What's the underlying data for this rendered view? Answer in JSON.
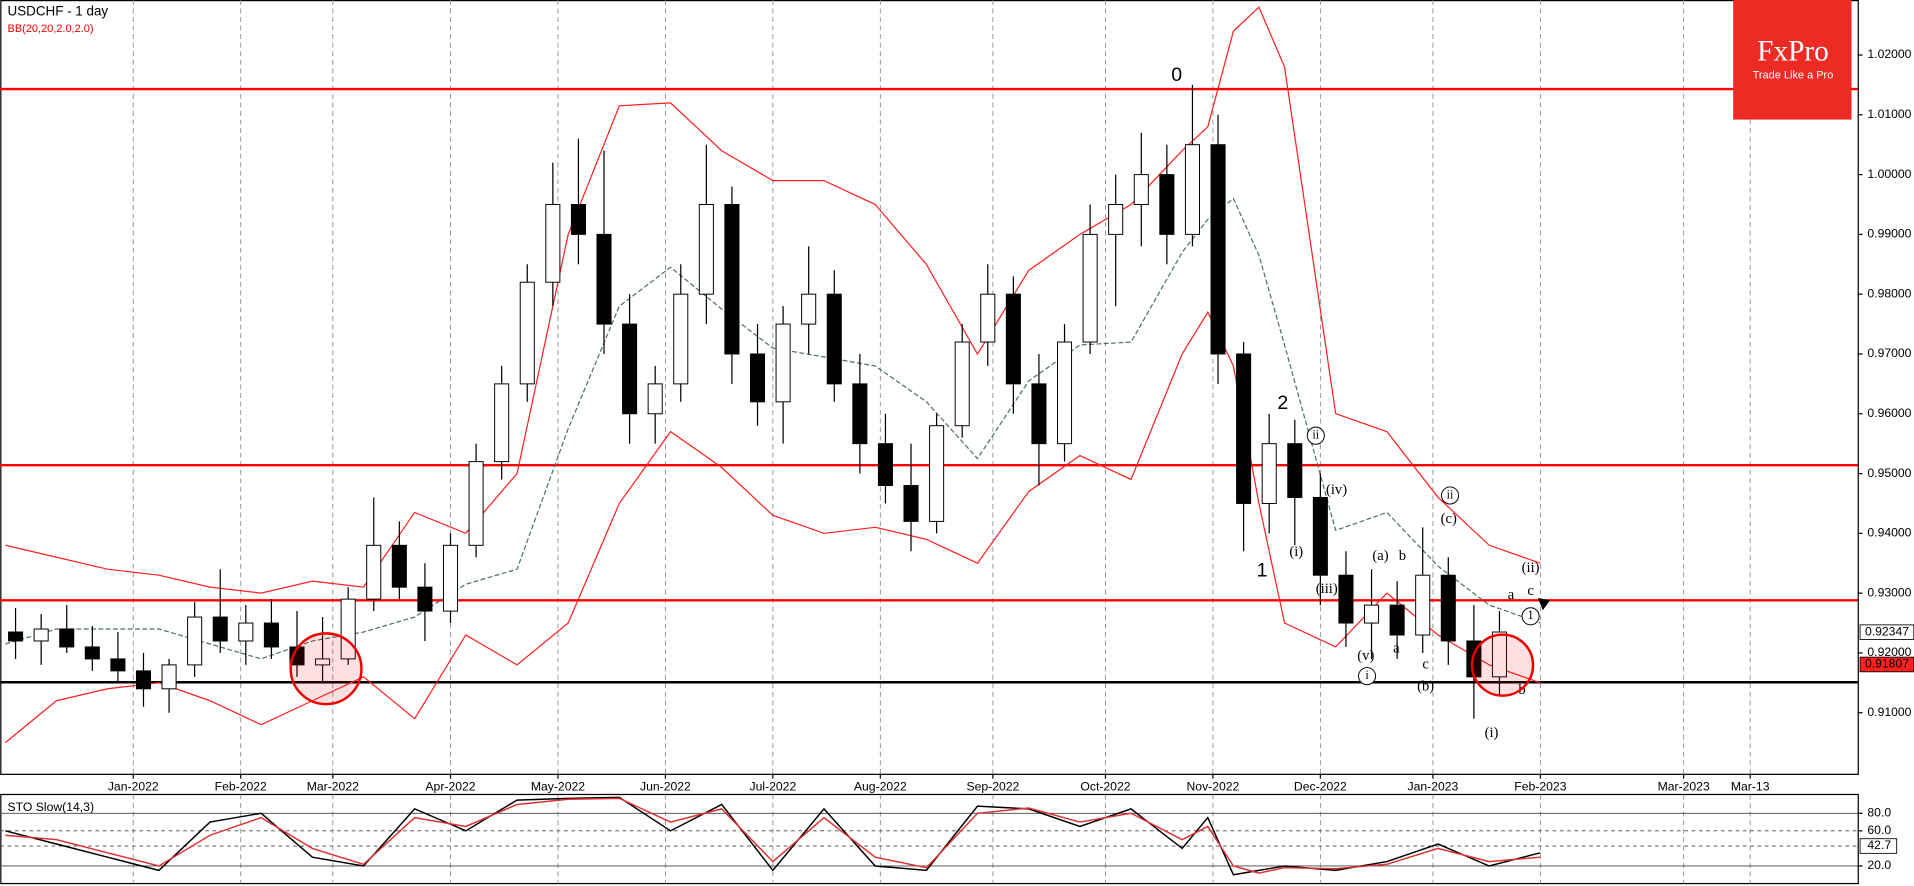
{
  "logo": {
    "name": "FxPro",
    "tagline": "Trade Like a Pro"
  },
  "chart_data": [
    {
      "type": "candlestick",
      "title": "USDCHF - 1 day",
      "subtitle": "BB(20,20,2.0,2.0)",
      "x": [
        -23,
        -18,
        -13,
        -8,
        -3,
        2,
        7,
        12,
        17,
        22,
        27,
        32,
        37,
        42,
        47,
        52,
        57,
        62,
        67,
        72,
        77,
        82,
        87,
        92,
        97,
        102,
        107,
        112,
        117,
        122,
        127,
        132,
        137,
        142,
        147,
        152,
        157,
        162,
        167,
        172,
        177,
        182,
        187,
        192,
        197,
        202,
        207,
        212,
        217,
        222,
        227,
        232,
        237,
        242,
        247,
        252,
        257,
        262,
        267
      ],
      "open": [
        0.9235,
        0.922,
        0.924,
        0.921,
        0.919,
        0.917,
        0.914,
        0.918,
        0.926,
        0.922,
        0.925,
        0.921,
        0.918,
        0.919,
        0.929,
        0.938,
        0.931,
        0.927,
        0.938,
        0.952,
        0.965,
        0.982,
        0.995,
        0.99,
        0.975,
        0.96,
        0.965,
        0.98,
        0.995,
        0.97,
        0.962,
        0.975,
        0.98,
        0.965,
        0.955,
        0.948,
        0.942,
        0.958,
        0.972,
        0.98,
        0.965,
        0.955,
        0.972,
        0.99,
        0.995,
        1.0,
        0.99,
        1.005,
        0.97,
        0.945,
        0.955,
        0.946,
        0.933,
        0.925,
        0.928,
        0.923,
        0.933,
        0.922,
        0.916
      ],
      "high": [
        0.9275,
        0.9265,
        0.928,
        0.9245,
        0.9235,
        0.92,
        0.919,
        0.9285,
        0.934,
        0.928,
        0.929,
        0.927,
        0.926,
        0.931,
        0.946,
        0.942,
        0.935,
        0.94,
        0.955,
        0.968,
        0.985,
        1.002,
        1.006,
        1.004,
        0.98,
        0.968,
        0.985,
        1.005,
        0.998,
        0.975,
        0.978,
        0.988,
        0.984,
        0.97,
        0.96,
        0.955,
        0.96,
        0.975,
        0.985,
        0.983,
        0.97,
        0.975,
        0.995,
        1.0,
        1.007,
        1.005,
        1.015,
        1.01,
        0.972,
        0.96,
        0.959,
        0.95,
        0.937,
        0.934,
        0.932,
        0.941,
        0.936,
        0.928,
        0.927
      ],
      "low": [
        0.919,
        0.918,
        0.92,
        0.917,
        0.915,
        0.911,
        0.91,
        0.916,
        0.92,
        0.918,
        0.919,
        0.916,
        0.915,
        0.918,
        0.927,
        0.929,
        0.922,
        0.925,
        0.936,
        0.949,
        0.962,
        0.978,
        0.985,
        0.97,
        0.955,
        0.955,
        0.962,
        0.975,
        0.965,
        0.958,
        0.955,
        0.97,
        0.962,
        0.95,
        0.945,
        0.937,
        0.94,
        0.956,
        0.968,
        0.96,
        0.948,
        0.952,
        0.97,
        0.978,
        0.988,
        0.985,
        0.988,
        0.965,
        0.937,
        0.94,
        0.938,
        0.928,
        0.921,
        0.919,
        0.919,
        0.92,
        0.918,
        0.909,
        0.913
      ],
      "close": [
        0.922,
        0.924,
        0.921,
        0.919,
        0.917,
        0.914,
        0.918,
        0.926,
        0.922,
        0.925,
        0.921,
        0.918,
        0.919,
        0.929,
        0.938,
        0.931,
        0.927,
        0.938,
        0.952,
        0.965,
        0.982,
        0.995,
        0.99,
        0.975,
        0.96,
        0.965,
        0.98,
        0.995,
        0.97,
        0.962,
        0.975,
        0.98,
        0.965,
        0.955,
        0.948,
        0.942,
        0.958,
        0.972,
        0.98,
        0.965,
        0.955,
        0.972,
        0.99,
        0.995,
        1.0,
        0.99,
        1.005,
        0.97,
        0.945,
        0.955,
        0.946,
        0.933,
        0.925,
        0.928,
        0.923,
        0.933,
        0.922,
        0.916,
        0.9235
      ],
      "up_color": "#ffffff",
      "down_color": "#000000",
      "bands": {
        "x": [
          -25,
          -15,
          -5,
          5,
          15,
          25,
          35,
          45,
          55,
          65,
          75,
          85,
          95,
          105,
          115,
          125,
          135,
          145,
          155,
          165,
          175,
          185,
          195,
          205,
          210,
          215,
          220,
          225,
          235,
          245,
          255,
          265,
          275
        ],
        "upper": [
          0.938,
          0.936,
          0.934,
          0.933,
          0.931,
          0.93,
          0.932,
          0.931,
          0.9435,
          0.94,
          0.95,
          0.99,
          1.0115,
          1.012,
          1.004,
          0.999,
          0.999,
          0.995,
          0.985,
          0.97,
          0.984,
          0.99,
          0.995,
          1.004,
          1.008,
          1.024,
          1.028,
          1.018,
          0.96,
          0.957,
          0.946,
          0.938,
          0.935
        ],
        "middle": [
          0.9215,
          0.924,
          0.924,
          0.924,
          0.9215,
          0.919,
          0.922,
          0.9235,
          0.926,
          0.9315,
          0.934,
          0.9575,
          0.978,
          0.9845,
          0.9775,
          0.971,
          0.9695,
          0.968,
          0.962,
          0.9525,
          0.9655,
          0.9715,
          0.972,
          0.987,
          0.9925,
          0.996,
          0.9865,
          0.9715,
          0.9405,
          0.9435,
          0.9345,
          0.928,
          0.925
        ],
        "lower": [
          0.905,
          0.912,
          0.914,
          0.915,
          0.912,
          0.908,
          0.912,
          0.916,
          0.909,
          0.923,
          0.918,
          0.925,
          0.945,
          0.957,
          0.951,
          0.943,
          0.94,
          0.941,
          0.939,
          0.935,
          0.947,
          0.953,
          0.949,
          0.97,
          0.977,
          0.968,
          0.945,
          0.925,
          0.921,
          0.93,
          0.923,
          0.918,
          0.915
        ],
        "color": "#ff2020",
        "middle_color": "#4f6f6f"
      },
      "hlines": [
        1.0143,
        0.9514,
        0.9288,
        0.9151
      ],
      "hline_colors": [
        "#ff0000",
        "#ff0000",
        "#ff0000",
        "#000000"
      ],
      "price_labels": [
        {
          "value": 0.92347,
          "label": "0.92347",
          "color": "#ffffff"
        },
        {
          "value": 0.91807,
          "label": "0.91807",
          "color": "#ff2020"
        }
      ],
      "annotations": [
        {
          "text": "0"
        },
        {
          "text": "1"
        },
        {
          "text": "2"
        },
        {
          "text": "(i)"
        },
        {
          "text": "ii",
          "circled": true
        },
        {
          "text": "(iv)"
        },
        {
          "text": "(iii)"
        },
        {
          "text": "(v)"
        },
        {
          "text": "i",
          "circled": true
        },
        {
          "text": "(a)"
        },
        {
          "text": "a"
        },
        {
          "text": "b"
        },
        {
          "text": "(b)"
        },
        {
          "text": "c"
        },
        {
          "text": "(c)"
        },
        {
          "text": "ii",
          "circled": true
        },
        {
          "text": "(i)"
        },
        {
          "text": "a"
        },
        {
          "text": "c"
        },
        {
          "text": "(ii)"
        },
        {
          "text": "1",
          "circled": true
        },
        {
          "text": "b"
        }
      ],
      "xlim": [
        -26,
        337
      ],
      "xticks": [
        {
          "value": 0,
          "label": "Jan-2022"
        },
        {
          "value": 21,
          "label": "Feb-2022"
        },
        {
          "value": 39,
          "label": "Mar-2022"
        },
        {
          "value": 62,
          "label": "Apr-2022"
        },
        {
          "value": 83,
          "label": "May-2022"
        },
        {
          "value": 104,
          "label": "Jun-2022"
        },
        {
          "value": 125,
          "label": "Jul-2022"
        },
        {
          "value": 146,
          "label": "Aug-2022"
        },
        {
          "value": 168,
          "label": "Sep-2022"
        },
        {
          "value": 190,
          "label": "Oct-2022"
        },
        {
          "value": 211,
          "label": "Nov-2022"
        },
        {
          "value": 232,
          "label": "Dec-2022"
        },
        {
          "value": 254,
          "label": "Jan-2023"
        },
        {
          "value": 275,
          "label": "Feb-2023"
        },
        {
          "value": 303,
          "label": "Mar-2023"
        },
        {
          "value": 316,
          "label": "Mar-13"
        }
      ],
      "ylim": [
        0.8998,
        1.0292
      ],
      "yticks": [
        {
          "value": 0.91,
          "label": "0.91000"
        },
        {
          "value": 0.92,
          "label": "0.92000"
        },
        {
          "value": 0.93,
          "label": "0.93000"
        },
        {
          "value": 0.94,
          "label": "0.94000"
        },
        {
          "value": 0.95,
          "label": "0.95000"
        },
        {
          "value": 0.96,
          "label": "0.96000"
        },
        {
          "value": 0.97,
          "label": "0.97000"
        },
        {
          "value": 0.98,
          "label": "0.98000"
        },
        {
          "value": 0.99,
          "label": "0.99000"
        },
        {
          "value": 1.0,
          "label": "1.00000"
        },
        {
          "value": 1.01,
          "label": "1.01000"
        },
        {
          "value": 1.02,
          "label": "1.02000"
        }
      ],
      "grid": true
    },
    {
      "type": "line",
      "title": "STO Slow(14,3)",
      "x": [
        -25,
        -15,
        -5,
        5,
        15,
        25,
        35,
        45,
        55,
        65,
        75,
        85,
        95,
        105,
        115,
        125,
        135,
        145,
        155,
        165,
        175,
        185,
        195,
        205,
        210,
        215,
        220,
        225,
        235,
        245,
        255,
        265,
        275
      ],
      "series": [
        {
          "color": "#000000",
          "values": [
            60,
            45,
            30,
            15,
            70,
            80,
            30,
            20,
            85,
            60,
            95,
            97,
            98,
            60,
            90,
            15,
            85,
            20,
            15,
            88,
            85,
            65,
            85,
            40,
            75,
            10,
            15,
            20,
            15,
            25,
            45,
            20,
            35
          ]
        },
        {
          "color": "#e03030",
          "values": [
            55,
            50,
            35,
            20,
            55,
            75,
            40,
            22,
            75,
            65,
            90,
            96,
            97,
            70,
            85,
            25,
            75,
            30,
            18,
            80,
            86,
            70,
            80,
            50,
            65,
            20,
            12,
            18,
            17,
            22,
            40,
            25,
            30
          ]
        }
      ],
      "ylim": [
        0,
        100
      ],
      "yticks": [
        {
          "value": 80,
          "label": "80.0"
        },
        {
          "value": 60,
          "label": "60.0"
        },
        {
          "value": 20,
          "label": "20.0"
        }
      ],
      "current": {
        "value": 42.7,
        "label": "42.7"
      }
    }
  ]
}
